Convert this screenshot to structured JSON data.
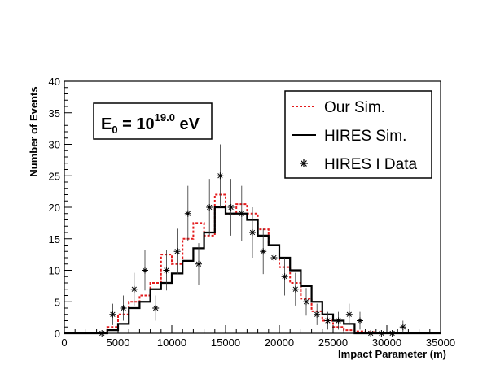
{
  "chart_data": {
    "type": "histogram",
    "xlabel": "Impact Parameter (m)",
    "ylabel": "Number of Events",
    "xlim": [
      0,
      35000
    ],
    "ylim": [
      0,
      40
    ],
    "x_ticks": [
      "0",
      "5000",
      "10000",
      "15000",
      "20000",
      "25000",
      "30000",
      "35000"
    ],
    "y_ticks": [
      "0",
      "5",
      "10",
      "15",
      "20",
      "25",
      "30",
      "35",
      "40"
    ],
    "annotation": {
      "base": "E",
      "sub": "0",
      "mid": " = 10",
      "sup": "19.0",
      "unit": " eV"
    },
    "legend": {
      "placement": "top-right",
      "entries": [
        {
          "label": "Our Sim.",
          "style": "dashed-line",
          "color": "#e41a1c"
        },
        {
          "label": "HIRES Sim.",
          "style": "solid-line",
          "color": "#000000"
        },
        {
          "label": "HIRES I Data",
          "style": "star-marker",
          "color": "#000000"
        }
      ]
    },
    "bin_width": 1000,
    "series": [
      {
        "name": "Our Sim.",
        "kind": "step",
        "color": "#e41a1c",
        "dash": "dashed",
        "bin_starts": [
          0,
          1000,
          2000,
          3000,
          4000,
          5000,
          6000,
          7000,
          8000,
          9000,
          10000,
          11000,
          12000,
          13000,
          14000,
          15000,
          16000,
          17000,
          18000,
          19000,
          20000,
          21000,
          22000,
          23000,
          24000,
          25000,
          26000,
          27000,
          28000,
          29000,
          30000,
          31000,
          32000,
          33000,
          34000
        ],
        "values": [
          0,
          0,
          0,
          0,
          1,
          3,
          5,
          6,
          8,
          12.5,
          11,
          15,
          17.5,
          15.5,
          22,
          19,
          20.5,
          19,
          16.5,
          14,
          10.5,
          8,
          5.5,
          3.5,
          2,
          1,
          0.5,
          0.3,
          0.2,
          0.1,
          0.1,
          0.1,
          0,
          0,
          0
        ]
      },
      {
        "name": "HIRES Sim.",
        "kind": "step",
        "color": "#000000",
        "dash": "solid",
        "bin_starts": [
          0,
          1000,
          2000,
          3000,
          4000,
          5000,
          6000,
          7000,
          8000,
          9000,
          10000,
          11000,
          12000,
          13000,
          14000,
          15000,
          16000,
          17000,
          18000,
          19000,
          20000,
          21000,
          22000,
          23000,
          24000,
          25000,
          26000,
          27000,
          28000,
          29000,
          30000,
          31000,
          32000,
          33000,
          34000
        ],
        "values": [
          0,
          0,
          0,
          0,
          0.5,
          1.5,
          4,
          5,
          7,
          8,
          9.5,
          11.5,
          13.5,
          16,
          20,
          19,
          19,
          18,
          15.5,
          14,
          12,
          10,
          7.5,
          5,
          3,
          2,
          1.5,
          0,
          0,
          0,
          0,
          0,
          0,
          0,
          0
        ]
      },
      {
        "name": "HIRES I Data",
        "kind": "points",
        "color": "#000000",
        "x": [
          3500,
          4500,
          5500,
          6500,
          7500,
          8500,
          9500,
          10500,
          11500,
          12500,
          13500,
          14500,
          15500,
          16500,
          17500,
          18500,
          19500,
          20500,
          21500,
          22500,
          23500,
          24500,
          25500,
          26500,
          27500,
          28500,
          29500,
          30500,
          31500
        ],
        "y": [
          0,
          3,
          4,
          7,
          10,
          4,
          10,
          13,
          19,
          11,
          20,
          25,
          20,
          19,
          16,
          13,
          12,
          9,
          7,
          5,
          3,
          2,
          2,
          3,
          2,
          0,
          0,
          0,
          1
        ],
        "err": [
          0,
          1.7,
          2,
          2.6,
          3.2,
          2,
          3.2,
          3.6,
          4.4,
          3.3,
          4.5,
          5,
          4.5,
          4.4,
          4,
          3.6,
          3.5,
          3,
          2.6,
          2.2,
          1.7,
          1.4,
          1.4,
          1.7,
          1.4,
          0,
          0,
          0,
          1
        ]
      }
    ]
  }
}
